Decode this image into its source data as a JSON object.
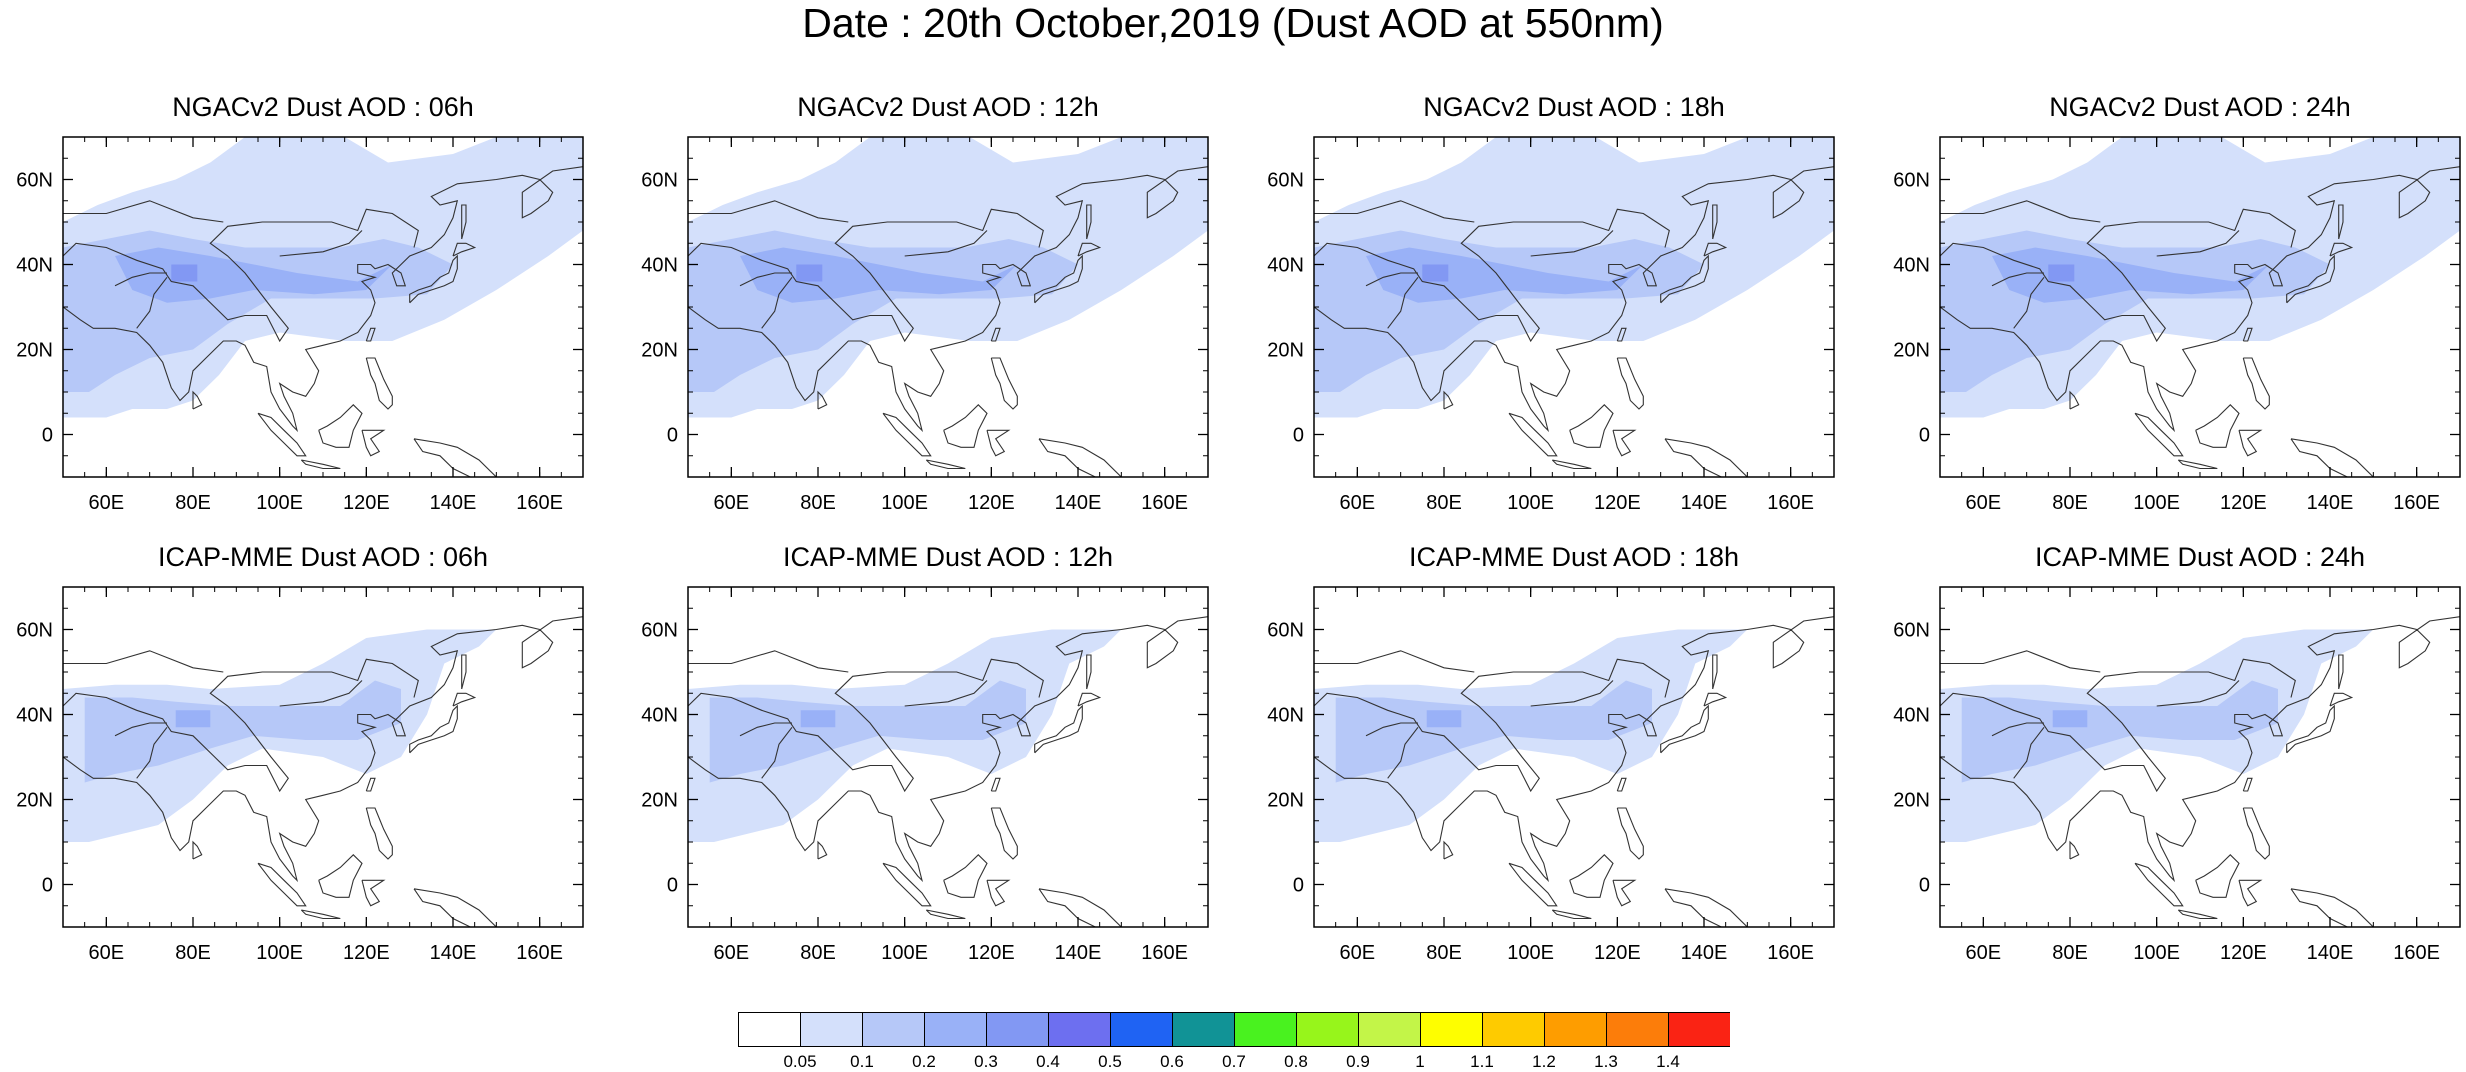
{
  "title": "Date : 20th October,2019 (Dust AOD at 550nm)",
  "panels": [
    {
      "title": "NGACv2 Dust AOD : 06h",
      "model": "NGACv2",
      "hour": "06h"
    },
    {
      "title": "NGACv2 Dust AOD : 12h",
      "model": "NGACv2",
      "hour": "12h"
    },
    {
      "title": "NGACv2 Dust AOD : 18h",
      "model": "NGACv2",
      "hour": "18h"
    },
    {
      "title": "NGACv2 Dust AOD : 24h",
      "model": "NGACv2",
      "hour": "24h"
    },
    {
      "title": "ICAP-MME Dust AOD : 06h",
      "model": "ICAP-MME",
      "hour": "06h"
    },
    {
      "title": "ICAP-MME Dust AOD : 12h",
      "model": "ICAP-MME",
      "hour": "12h"
    },
    {
      "title": "ICAP-MME Dust AOD : 18h",
      "model": "ICAP-MME",
      "hour": "18h"
    },
    {
      "title": "ICAP-MME Dust AOD : 24h",
      "model": "ICAP-MME",
      "hour": "24h"
    }
  ],
  "map": {
    "lon_range": [
      50,
      170
    ],
    "lat_range": [
      -10,
      70
    ],
    "lon_ticks": [
      60,
      80,
      100,
      120,
      140,
      160
    ],
    "lon_tick_labels": [
      "60E",
      "80E",
      "100E",
      "120E",
      "140E",
      "160E"
    ],
    "lat_ticks": [
      0,
      20,
      40,
      60
    ],
    "lat_tick_labels": [
      "0",
      "20N",
      "40N",
      "60N"
    ]
  },
  "colorbar": {
    "labels": [
      "0.05",
      "0.1",
      "0.2",
      "0.3",
      "0.4",
      "0.5",
      "0.6",
      "0.7",
      "0.8",
      "0.9",
      "1",
      "1.1",
      "1.2",
      "1.3",
      "1.4"
    ],
    "colors": [
      "#ffffff",
      "#d4e0fb",
      "#b6c8f8",
      "#99b1f7",
      "#8298f3",
      "#6d6ff0",
      "#1f63f3",
      "#119396",
      "#49f21f",
      "#97f51b",
      "#c3f548",
      "#fefe00",
      "#fecb00",
      "#fe9d00",
      "#fc7d0a",
      "#fa2314"
    ]
  },
  "chart_data": {
    "type": "heatmap",
    "title": "Date : 20th October,2019 (Dust AOD at 550nm)",
    "valid_date": "20th October,2019",
    "variable": "Dust AOD at 550nm",
    "xlim": [
      50,
      170
    ],
    "ylim": [
      -10,
      70
    ],
    "legend_levels": [
      0.05,
      0.1,
      0.2,
      0.3,
      0.4,
      0.5,
      0.6,
      0.7,
      0.8,
      0.9,
      1,
      1.1,
      1.2,
      1.3,
      1.4
    ],
    "panels": [
      {
        "model": "NGACv2",
        "hour": "06h",
        "max_level": 0.4,
        "max_location": [
          78,
          38
        ]
      },
      {
        "model": "NGACv2",
        "hour": "12h",
        "max_level": 0.4,
        "max_location": [
          78,
          38
        ]
      },
      {
        "model": "NGACv2",
        "hour": "18h",
        "max_level": 0.4,
        "max_location": [
          78,
          38
        ]
      },
      {
        "model": "NGACv2",
        "hour": "24h",
        "max_level": 0.4,
        "max_location": [
          78,
          38
        ]
      },
      {
        "model": "ICAP-MME",
        "hour": "06h",
        "max_level": 0.3,
        "max_location": [
          80,
          39
        ]
      },
      {
        "model": "ICAP-MME",
        "hour": "12h",
        "max_level": 0.3,
        "max_location": [
          80,
          39
        ]
      },
      {
        "model": "ICAP-MME",
        "hour": "18h",
        "max_level": 0.3,
        "max_location": [
          80,
          39
        ]
      },
      {
        "model": "ICAP-MME",
        "hour": "24h",
        "max_level": 0.3,
        "max_location": [
          80,
          39
        ]
      }
    ]
  }
}
